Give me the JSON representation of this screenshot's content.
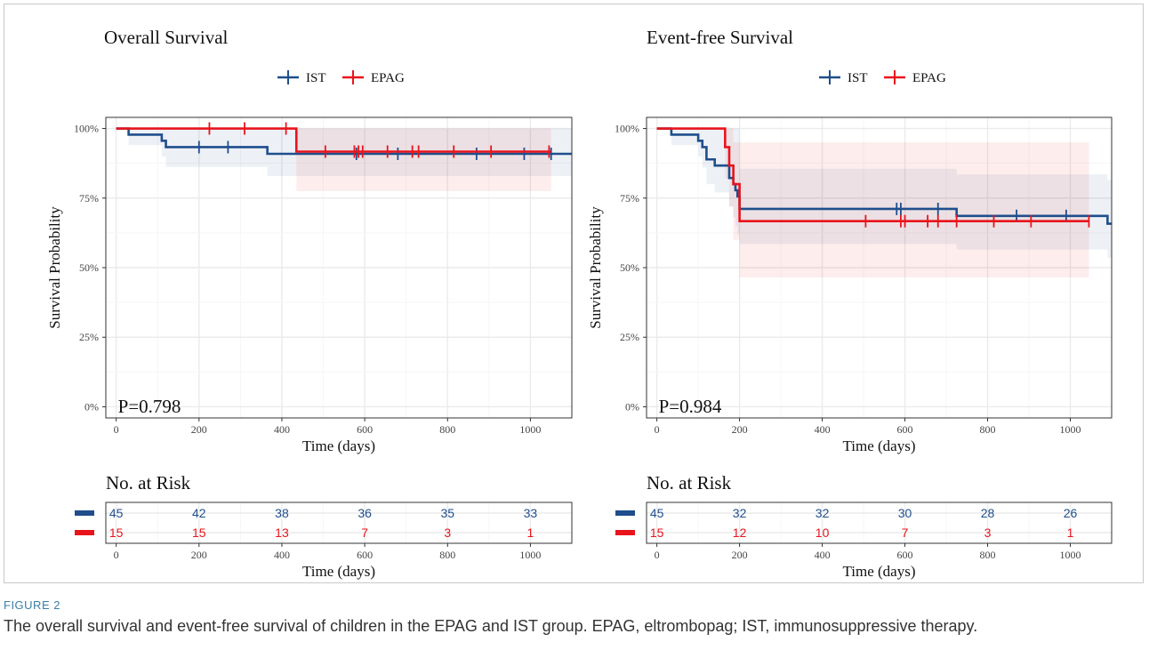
{
  "figure": {
    "label": "FIGURE 2",
    "caption": "The overall survival and event-free survival of children in the EPAG and IST group. EPAG, eltrombopag; IST, immunosuppressive therapy."
  },
  "colors": {
    "IST": "#1f4e8c",
    "EPAG": "#e8141c"
  },
  "chart_data": [
    {
      "type": "line",
      "subtype": "kaplan-meier step",
      "title": "Overall Survival",
      "xlabel": "Time (days)",
      "ylabel": "Survival Probability",
      "xlim": [
        -25,
        1100
      ],
      "ylim": [
        0,
        1
      ],
      "xticks": [
        0,
        200,
        400,
        600,
        800,
        1000
      ],
      "yticks": [
        "0%",
        "25%",
        "50%",
        "75%",
        "100%"
      ],
      "legend": {
        "position": "top-center",
        "entries": [
          "IST",
          "EPAG"
        ]
      },
      "grid": true,
      "annotation": "P=0.798",
      "series": [
        {
          "name": "IST",
          "steps": [
            [
              0,
              1.0
            ],
            [
              30,
              0.978
            ],
            [
              110,
              0.956
            ],
            [
              120,
              0.933
            ],
            [
              365,
              0.909
            ]
          ],
          "censored": [
            [
              200,
              0.933
            ],
            [
              270,
              0.933
            ],
            [
              580,
              0.909
            ],
            [
              680,
              0.909
            ],
            [
              870,
              0.909
            ],
            [
              985,
              0.909
            ],
            [
              1050,
              0.909
            ]
          ],
          "ci_lower": [
            [
              0,
              1.0
            ],
            [
              30,
              0.94
            ],
            [
              110,
              0.9
            ],
            [
              120,
              0.862
            ],
            [
              365,
              0.829
            ]
          ],
          "ci_upper": [
            [
              0,
              1.0
            ]
          ],
          "end": 1100
        },
        {
          "name": "EPAG",
          "steps": [
            [
              0,
              1.0
            ],
            [
              435,
              0.917
            ]
          ],
          "censored": [
            [
              225,
              1.0
            ],
            [
              310,
              1.0
            ],
            [
              410,
              1.0
            ],
            [
              505,
              0.917
            ],
            [
              575,
              0.917
            ],
            [
              585,
              0.917
            ],
            [
              595,
              0.917
            ],
            [
              655,
              0.917
            ],
            [
              715,
              0.917
            ],
            [
              730,
              0.917
            ],
            [
              815,
              0.917
            ],
            [
              905,
              0.917
            ],
            [
              1045,
              0.917
            ]
          ],
          "ci_lower": [
            [
              0,
              1.0
            ],
            [
              435,
              0.775
            ]
          ],
          "ci_upper": [
            [
              0,
              1.0
            ]
          ],
          "end": 1050
        }
      ]
    },
    {
      "type": "line",
      "subtype": "kaplan-meier step",
      "title": "Event-free Survival",
      "xlabel": "Time (days)",
      "ylabel": "Survival Probability",
      "xlim": [
        -25,
        1100
      ],
      "ylim": [
        0,
        1
      ],
      "xticks": [
        0,
        200,
        400,
        600,
        800,
        1000
      ],
      "yticks": [
        "0%",
        "25%",
        "50%",
        "75%",
        "100%"
      ],
      "legend": {
        "position": "top-center",
        "entries": [
          "IST",
          "EPAG"
        ]
      },
      "grid": true,
      "annotation": "P=0.984",
      "series": [
        {
          "name": "IST",
          "steps": [
            [
              0,
              1.0
            ],
            [
              35,
              0.978
            ],
            [
              100,
              0.956
            ],
            [
              110,
              0.933
            ],
            [
              120,
              0.889
            ],
            [
              140,
              0.867
            ],
            [
              175,
              0.822
            ],
            [
              185,
              0.8
            ],
            [
              190,
              0.778
            ],
            [
              195,
              0.756
            ],
            [
              200,
              0.711
            ],
            [
              725,
              0.686
            ],
            [
              1090,
              0.658
            ]
          ],
          "censored": [
            [
              580,
              0.711
            ],
            [
              590,
              0.711
            ],
            [
              680,
              0.711
            ],
            [
              870,
              0.686
            ],
            [
              990,
              0.686
            ]
          ],
          "ci_lower": [
            [
              0,
              1.0
            ],
            [
              35,
              0.94
            ],
            [
              100,
              0.9
            ],
            [
              110,
              0.86
            ],
            [
              120,
              0.8
            ],
            [
              140,
              0.77
            ],
            [
              175,
              0.72
            ],
            [
              185,
              0.68
            ],
            [
              190,
              0.65
            ],
            [
              195,
              0.62
            ],
            [
              200,
              0.585
            ],
            [
              725,
              0.565
            ],
            [
              1090,
              0.535
            ]
          ],
          "ci_upper": [
            [
              0,
              1.0
            ],
            [
              200,
              0.855
            ],
            [
              725,
              0.835
            ],
            [
              1090,
              0.815
            ]
          ],
          "end": 1100
        },
        {
          "name": "EPAG",
          "steps": [
            [
              0,
              1.0
            ],
            [
              165,
              0.933
            ],
            [
              175,
              0.867
            ],
            [
              185,
              0.8
            ],
            [
              200,
              0.667
            ]
          ],
          "censored": [
            [
              505,
              0.667
            ],
            [
              590,
              0.667
            ],
            [
              600,
              0.667
            ],
            [
              655,
              0.667
            ],
            [
              680,
              0.667
            ],
            [
              725,
              0.667
            ],
            [
              815,
              0.667
            ],
            [
              905,
              0.667
            ],
            [
              1045,
              0.667
            ]
          ],
          "ci_lower": [
            [
              0,
              1.0
            ],
            [
              165,
              0.82
            ],
            [
              175,
              0.72
            ],
            [
              185,
              0.6
            ],
            [
              200,
              0.465
            ]
          ],
          "ci_upper": [
            [
              0,
              1.0
            ],
            [
              185,
              0.95
            ]
          ],
          "end": 1045
        }
      ]
    }
  ],
  "risk_tables": [
    {
      "title": "No. at Risk",
      "xlabel": "Time (days)",
      "xticks": [
        0,
        200,
        400,
        600,
        800,
        1000
      ],
      "rows": [
        {
          "group": "IST",
          "values": [
            45,
            42,
            38,
            36,
            35,
            33
          ]
        },
        {
          "group": "EPAG",
          "values": [
            15,
            15,
            13,
            7,
            3,
            1
          ]
        }
      ]
    },
    {
      "title": "No. at Risk",
      "xlabel": "Time (days)",
      "xticks": [
        0,
        200,
        400,
        600,
        800,
        1000
      ],
      "rows": [
        {
          "group": "IST",
          "values": [
            45,
            32,
            32,
            30,
            28,
            26
          ]
        },
        {
          "group": "EPAG",
          "values": [
            15,
            12,
            10,
            7,
            3,
            1
          ]
        }
      ]
    }
  ]
}
